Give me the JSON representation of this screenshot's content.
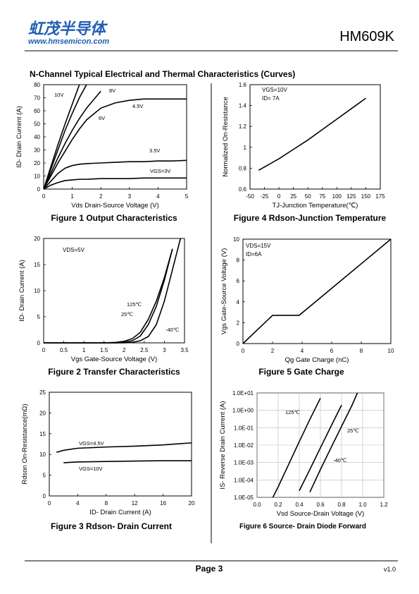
{
  "header": {
    "logo": "虹茂半导体",
    "website": "www.hmsemicon.com",
    "part_number": "HM609K"
  },
  "section_title": "N-Channel Typical Electrical and Thermal Characteristics (Curves)",
  "chart_data": [
    {
      "type": "line",
      "caption": "Figure 1 Output Characteristics",
      "x_label": "Vds Drain-Source Voltage (V)",
      "y_label": "ID- Drain Current (A)",
      "x": [
        0,
        0.25,
        0.5,
        0.75,
        1,
        1.25,
        1.5,
        2,
        2.5,
        3,
        3.5,
        4,
        4.5,
        5
      ],
      "series": [
        {
          "name": "10V",
          "color": "#000000",
          "values": [
            0,
            17,
            34,
            50,
            65,
            80,
            null,
            null,
            null,
            null,
            null,
            null,
            null,
            null
          ]
        },
        {
          "name": "8V",
          "color": "#000000",
          "values": [
            0,
            15,
            30,
            45,
            58,
            70,
            80,
            null,
            null,
            null,
            null,
            null,
            null,
            null
          ]
        },
        {
          "name": "6V",
          "color": "#000000",
          "values": [
            0,
            12,
            24,
            35,
            45,
            54,
            62,
            75,
            null,
            null,
            null,
            null,
            null,
            null
          ]
        },
        {
          "name": "4.5V",
          "color": "#000000",
          "values": [
            0,
            10,
            20,
            29,
            38,
            46,
            53,
            62,
            66,
            68,
            69,
            69,
            69,
            69
          ]
        },
        {
          "name": "3.5V",
          "color": "#000000",
          "values": [
            0,
            6,
            12,
            16,
            18,
            19,
            19.5,
            20,
            20.5,
            21,
            21,
            21.5,
            21.5,
            22
          ]
        },
        {
          "name": "VGS=3V",
          "color": "#000000",
          "values": [
            0,
            3,
            5,
            6.5,
            7,
            7.5,
            7.5,
            8,
            8,
            8,
            8.5,
            8.5,
            8.5,
            8.5
          ]
        }
      ],
      "xlim": [
        0,
        5
      ],
      "ylim": [
        0,
        80
      ],
      "xticks": [
        0,
        1,
        2,
        3,
        4,
        5
      ],
      "yticks": [
        0,
        10,
        20,
        30,
        40,
        50,
        60,
        70,
        80
      ],
      "grid": false,
      "ylog": false
    },
    {
      "type": "line",
      "caption": "Figure 4 Rdson-Junction Temperature",
      "x_label": "TJ-Junction Temperature(℃)",
      "y_label": "Normalized On-Resistance",
      "x": [
        -35,
        0,
        25,
        50,
        75,
        100,
        125,
        150
      ],
      "values": [
        0.78,
        0.89,
        0.98,
        1.07,
        1.17,
        1.27,
        1.37,
        1.47
      ],
      "color": "#000000",
      "annotations": [
        "VGS=10V",
        "ID= 7A"
      ],
      "xlim": [
        -50,
        175
      ],
      "ylim": [
        0.6,
        1.6
      ],
      "xticks": [
        -50,
        -25,
        0,
        25,
        50,
        75,
        100,
        125,
        150,
        175
      ],
      "yticks": [
        0.6,
        0.8,
        1,
        1.2,
        1.4,
        1.6
      ],
      "grid": false,
      "ylog": false
    },
    {
      "type": "line",
      "caption": "Figure 2 Transfer Characteristics",
      "x_label": "Vgs Gate-Source Voltage (V)",
      "y_label": "ID- Drain Current (A)",
      "x": [
        0,
        1.5,
        1.8,
        2,
        2.2,
        2.4,
        2.6,
        2.8,
        3,
        3.2,
        3.4
      ],
      "series": [
        {
          "name": "125℃",
          "color": "#000000",
          "values": [
            0,
            0,
            0.1,
            0.3,
            0.8,
            2,
            4.5,
            8,
            12.5,
            18,
            null
          ]
        },
        {
          "name": "25℃",
          "color": "#000000",
          "values": [
            0,
            0,
            0,
            0.1,
            0.4,
            1.3,
            3.5,
            7,
            12,
            18,
            null
          ]
        },
        {
          "name": "-40℃",
          "color": "#000000",
          "values": [
            0,
            0,
            0,
            0,
            0.1,
            0.4,
            1.2,
            3.5,
            8,
            14,
            20
          ]
        }
      ],
      "annotations": [
        "VDS=5V"
      ],
      "xlim": [
        0,
        3.5
      ],
      "ylim": [
        0,
        20
      ],
      "xticks": [
        0,
        0.5,
        1,
        1.5,
        2,
        2.5,
        3,
        3.5
      ],
      "yticks": [
        0,
        5,
        10,
        15,
        20
      ],
      "grid": false,
      "ylog": false
    },
    {
      "type": "line",
      "caption": "Figure 5 Gate Charge",
      "x_label": "Qg Gate Charge (nC)",
      "y_label": "Vgs Gate-Source Voltage (V)",
      "x": [
        0,
        2,
        3.8,
        10
      ],
      "values": [
        0,
        2.7,
        2.7,
        10
      ],
      "color": "#000000",
      "annotations": [
        "VDS=15V",
        "ID=6A"
      ],
      "xlim": [
        0,
        10
      ],
      "ylim": [
        0,
        10
      ],
      "xticks": [
        0,
        2,
        4,
        6,
        8,
        10
      ],
      "yticks": [
        0,
        2,
        4,
        6,
        8,
        10
      ],
      "grid": false,
      "ylog": false
    },
    {
      "type": "line",
      "caption": "Figure 3 Rdson- Drain Current",
      "x_label": "ID- Drain Current (A)",
      "y_label": "Rdson On-Resistance(mΩ)",
      "x": [
        1,
        2,
        4,
        8,
        12,
        16,
        20
      ],
      "series": [
        {
          "name": "VGS=4.5V",
          "color": "#000000",
          "values": [
            10.5,
            11,
            11.5,
            11.8,
            12,
            12.3,
            12.8
          ]
        },
        {
          "name": "VGS=10V",
          "color": "#000000",
          "values": [
            null,
            8,
            8.2,
            8.3,
            8.4,
            8.5,
            8.5
          ]
        }
      ],
      "xlim": [
        0,
        20
      ],
      "ylim": [
        0,
        25
      ],
      "xticks": [
        0,
        4,
        8,
        12,
        16,
        20
      ],
      "yticks": [
        0,
        5,
        10,
        15,
        20,
        25
      ],
      "grid": false,
      "ylog": false
    },
    {
      "type": "line",
      "caption": "Figure 6 Source- Drain Diode Forward",
      "x_label": "Vsd Source-Drain Voltage (V)",
      "y_label": "IS- Reverse Drain Current (A)",
      "x": [
        0.15,
        0.2,
        0.3,
        0.4,
        0.5,
        0.6,
        0.7,
        0.8,
        0.9,
        0.95
      ],
      "series": [
        {
          "name": "125℃",
          "color": "#000000",
          "values": [
            1e-05,
            4e-05,
            0.0008,
            0.016,
            0.3,
            5,
            null,
            null,
            null,
            null
          ]
        },
        {
          "name": "25℃",
          "color": "#000000",
          "values": [
            null,
            null,
            null,
            2.4e-05,
            0.0004,
            0.007,
            0.12,
            2,
            null,
            null
          ]
        },
        {
          "name": "-40℃",
          "color": "#000000",
          "values": [
            null,
            null,
            null,
            null,
            2e-05,
            0.0004,
            0.007,
            0.12,
            2,
            10
          ]
        }
      ],
      "xlim": [
        0,
        1.2
      ],
      "ylim": [
        1e-05,
        10
      ],
      "xticks": [
        {
          "value": 0,
          "label": "0.0"
        },
        0.2,
        0.4,
        0.6,
        0.8,
        {
          "value": 1,
          "label": "1.0"
        },
        1.2
      ],
      "yticks": [
        {
          "value": 1e-05,
          "label": "1.0E-05"
        },
        {
          "value": 0.0001,
          "label": "1.0E-04"
        },
        {
          "value": 0.001,
          "label": "1.0E-03"
        },
        {
          "value": 0.01,
          "label": "1.0E-02"
        },
        {
          "value": 0.1,
          "label": "1.0E-01"
        },
        {
          "value": 1,
          "label": "1.0E+00"
        },
        {
          "value": 10,
          "label": "1.0E+01"
        }
      ],
      "grid": true,
      "ylog": true
    }
  ],
  "footer": {
    "page": "Page 3",
    "version": "v1.0"
  }
}
